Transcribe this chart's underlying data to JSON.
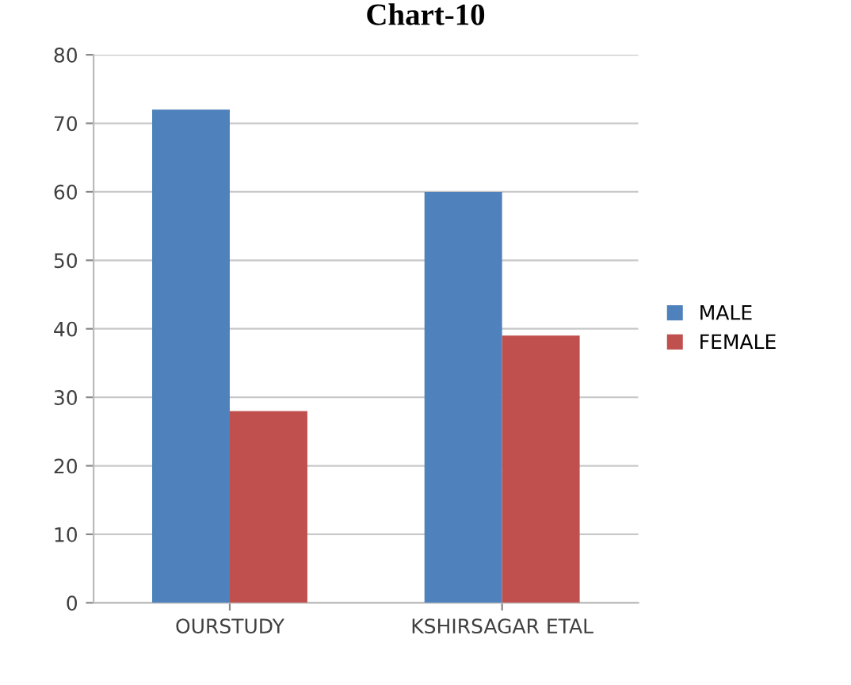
{
  "chart_data": {
    "type": "bar",
    "title": "Chart-10",
    "categories": [
      "OURSTUDY",
      "KSHIRSAGAR ETAL"
    ],
    "series": [
      {
        "name": "MALE",
        "color": "#4f81bd",
        "values": [
          72,
          60
        ]
      },
      {
        "name": "FEMALE",
        "color": "#c0504d",
        "values": [
          28,
          39
        ]
      }
    ],
    "ylim": [
      0,
      80
    ],
    "yticks": [
      0,
      10,
      20,
      30,
      40,
      50,
      60,
      70,
      80
    ],
    "grid": "y",
    "legend": "right"
  }
}
